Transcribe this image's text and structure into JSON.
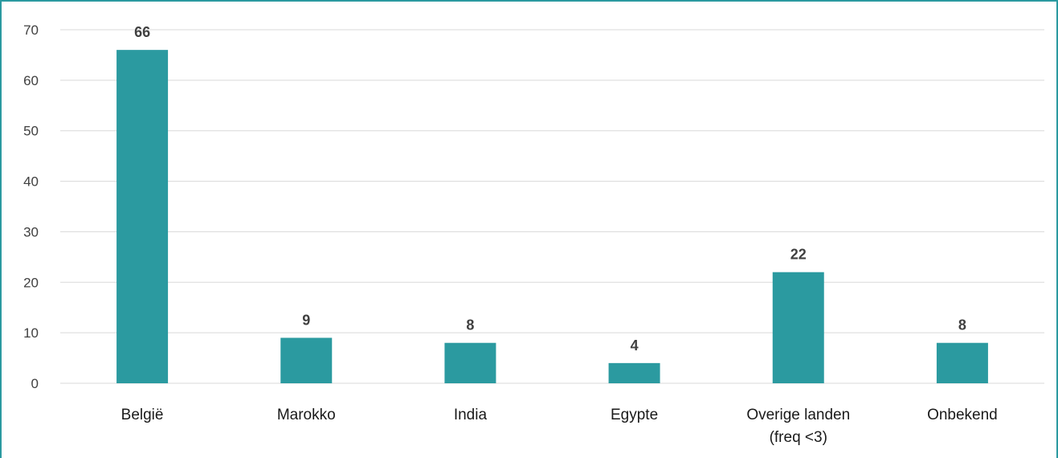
{
  "chart_data": {
    "type": "bar",
    "title": "",
    "xlabel": "",
    "ylabel": "",
    "categories": [
      [
        "België"
      ],
      [
        "Marokko"
      ],
      [
        "India"
      ],
      [
        "Egypte"
      ],
      [
        "Overige landen",
        "(freq <3)"
      ],
      [
        "Onbekend"
      ]
    ],
    "values": [
      66,
      9,
      8,
      4,
      22,
      8
    ],
    "ylim": [
      0,
      70
    ],
    "yticks": [
      0,
      10,
      20,
      30,
      40,
      50,
      60,
      70
    ],
    "grid": true,
    "legend": "none",
    "colors": {
      "bar": "#2b9aa0",
      "frame": "#2b9aa0",
      "grid": "#d9d9d9"
    }
  }
}
